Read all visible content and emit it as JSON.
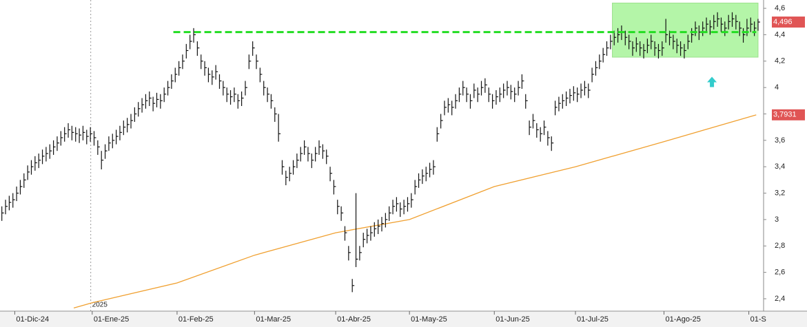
{
  "chart_data": {
    "type": "ohlc",
    "color": "#111111",
    "xlim": [
      0,
      207
    ],
    "ylim": [
      2.306,
      4.663
    ],
    "yticks": [
      {
        "value": 2.4,
        "label": "2,4"
      },
      {
        "value": 2.6,
        "label": "2,6"
      },
      {
        "value": 2.8,
        "label": "2,8"
      },
      3,
      {
        "value": 3.2,
        "label": "3,2"
      },
      {
        "value": 3.4,
        "label": "3,4"
      },
      {
        "value": 3.6,
        "label": "3,6"
      },
      {
        "value": 3.8,
        "label": "3,8"
      },
      4,
      {
        "value": 4.2,
        "label": "4,2"
      },
      {
        "value": 4.4,
        "label": "4,4"
      },
      {
        "value": 4.6,
        "label": "4,6"
      }
    ],
    "xticks": [
      {
        "value": 4,
        "label": "01-Dic-24"
      },
      {
        "value": 25,
        "label": "01-Ene-25"
      },
      {
        "value": 48,
        "label": "01-Feb-25"
      },
      {
        "value": 69,
        "label": "01-Mar-25"
      },
      {
        "value": 91,
        "label": "01-Abr-25"
      },
      {
        "value": 111,
        "label": "01-May-25"
      },
      {
        "value": 134,
        "label": "01-Jun-25"
      },
      {
        "value": 156,
        "label": "01-Jul-25"
      },
      {
        "value": 180,
        "label": "01-Ago-25"
      },
      {
        "value": 203,
        "label": "01-S"
      }
    ],
    "year_marker": {
      "x": 24.6,
      "label": "2025"
    },
    "high": [
      3.1,
      3.15,
      3.18,
      3.2,
      3.25,
      3.3,
      3.35,
      3.41,
      3.45,
      3.48,
      3.5,
      3.53,
      3.55,
      3.57,
      3.6,
      3.63,
      3.67,
      3.7,
      3.73,
      3.71,
      3.7,
      3.69,
      3.71,
      3.68,
      3.7,
      3.67,
      3.6,
      3.52,
      3.57,
      3.63,
      3.65,
      3.68,
      3.71,
      3.75,
      3.77,
      3.8,
      3.85,
      3.89,
      3.92,
      3.95,
      3.97,
      3.93,
      3.96,
      3.95,
      4.0,
      4.05,
      4.1,
      4.15,
      4.2,
      4.25,
      4.33,
      4.4,
      4.45,
      4.35,
      4.25,
      4.2,
      4.15,
      4.13,
      4.17,
      4.1,
      4.05,
      4.0,
      3.98,
      4.0,
      3.95,
      3.97,
      4.05,
      4.25,
      4.35,
      4.25,
      4.15,
      4.05,
      4.0,
      3.95,
      3.85,
      3.8,
      3.45,
      3.37,
      3.4,
      3.45,
      3.5,
      3.55,
      3.6,
      3.55,
      3.5,
      3.55,
      3.6,
      3.57,
      3.53,
      3.4,
      3.3,
      3.15,
      3.1,
      2.95,
      2.8,
      2.55,
      3.2,
      2.8,
      2.9,
      2.93,
      2.95,
      2.98,
      3.0,
      3.02,
      3.05,
      3.1,
      3.15,
      3.17,
      3.13,
      3.15,
      3.17,
      3.2,
      3.3,
      3.35,
      3.38,
      3.4,
      3.43,
      3.45,
      3.7,
      3.8,
      3.9,
      3.92,
      3.9,
      3.95,
      4.0,
      4.05,
      4.0,
      3.95,
      4.03,
      4.0,
      4.05,
      4.07,
      4.0,
      3.95,
      3.98,
      4.0,
      4.03,
      4.05,
      4.02,
      4.0,
      4.05,
      4.1,
      3.95,
      3.75,
      3.8,
      3.73,
      3.7,
      3.75,
      3.67,
      3.63,
      3.9,
      3.93,
      3.95,
      3.97,
      3.99,
      4.01,
      4.0,
      4.03,
      4.05,
      4.03,
      4.15,
      4.2,
      4.25,
      4.3,
      4.35,
      4.4,
      4.43,
      4.45,
      4.47,
      4.43,
      4.4,
      4.35,
      4.38,
      4.35,
      4.33,
      4.37,
      4.4,
      4.35,
      4.33,
      4.35,
      4.52,
      4.43,
      4.4,
      4.37,
      4.35,
      4.33,
      4.4,
      4.45,
      4.5,
      4.47,
      4.5,
      4.53,
      4.51,
      4.55,
      4.57,
      4.53,
      4.5,
      4.55,
      4.57,
      4.55,
      4.5,
      4.45,
      4.52,
      4.53,
      4.5,
      4.52
    ],
    "low": [
      2.99,
      3.04,
      3.07,
      3.09,
      3.14,
      3.19,
      3.24,
      3.3,
      3.34,
      3.37,
      3.39,
      3.42,
      3.44,
      3.46,
      3.49,
      3.52,
      3.56,
      3.59,
      3.62,
      3.6,
      3.59,
      3.58,
      3.6,
      3.57,
      3.59,
      3.56,
      3.49,
      3.38,
      3.46,
      3.52,
      3.54,
      3.57,
      3.6,
      3.64,
      3.66,
      3.69,
      3.74,
      3.78,
      3.81,
      3.84,
      3.86,
      3.82,
      3.85,
      3.84,
      3.89,
      3.94,
      3.99,
      4.04,
      4.09,
      4.14,
      4.22,
      4.29,
      4.34,
      4.24,
      4.14,
      4.09,
      4.04,
      4.02,
      4.06,
      3.99,
      3.94,
      3.89,
      3.87,
      3.89,
      3.84,
      3.86,
      3.94,
      4.14,
      4.24,
      4.14,
      4.04,
      3.94,
      3.89,
      3.84,
      3.74,
      3.59,
      3.34,
      3.26,
      3.29,
      3.34,
      3.39,
      3.44,
      3.49,
      3.44,
      3.39,
      3.44,
      3.49,
      3.46,
      3.42,
      3.29,
      3.19,
      3.04,
      2.99,
      2.84,
      2.69,
      2.45,
      2.64,
      2.69,
      2.79,
      2.82,
      2.84,
      2.87,
      2.89,
      2.91,
      2.94,
      2.99,
      3.04,
      3.06,
      3.02,
      3.04,
      3.06,
      3.09,
      3.19,
      3.24,
      3.27,
      3.29,
      3.32,
      3.34,
      3.59,
      3.69,
      3.79,
      3.81,
      3.79,
      3.84,
      3.89,
      3.94,
      3.89,
      3.84,
      3.92,
      3.89,
      3.94,
      3.96,
      3.89,
      3.84,
      3.87,
      3.89,
      3.92,
      3.94,
      3.91,
      3.89,
      3.94,
      3.99,
      3.84,
      3.64,
      3.69,
      3.62,
      3.59,
      3.64,
      3.56,
      3.52,
      3.79,
      3.82,
      3.84,
      3.86,
      3.88,
      3.9,
      3.89,
      3.92,
      3.94,
      3.92,
      4.04,
      4.09,
      4.14,
      4.19,
      4.24,
      4.29,
      4.32,
      4.34,
      4.36,
      4.32,
      4.29,
      4.24,
      4.27,
      4.24,
      4.22,
      4.26,
      4.29,
      4.24,
      4.22,
      4.24,
      4.34,
      4.32,
      4.29,
      4.26,
      4.24,
      4.22,
      4.29,
      4.34,
      4.39,
      4.36,
      4.39,
      4.42,
      4.4,
      4.44,
      4.46,
      4.42,
      4.39,
      4.44,
      4.46,
      4.44,
      4.39,
      4.34,
      4.39,
      4.42,
      4.39,
      4.43
    ],
    "close": [
      3.05,
      3.1,
      3.13,
      3.15,
      3.2,
      3.25,
      3.3,
      3.36,
      3.4,
      3.43,
      3.45,
      3.48,
      3.5,
      3.52,
      3.55,
      3.58,
      3.62,
      3.65,
      3.68,
      3.66,
      3.65,
      3.64,
      3.66,
      3.63,
      3.65,
      3.62,
      3.55,
      3.45,
      3.52,
      3.58,
      3.6,
      3.63,
      3.66,
      3.7,
      3.72,
      3.75,
      3.8,
      3.84,
      3.87,
      3.9,
      3.92,
      3.88,
      3.91,
      3.9,
      3.95,
      4.0,
      4.05,
      4.1,
      4.15,
      4.2,
      4.28,
      4.35,
      4.4,
      4.3,
      4.2,
      4.15,
      4.1,
      4.08,
      4.12,
      4.05,
      4.0,
      3.95,
      3.93,
      3.95,
      3.9,
      3.92,
      4.0,
      4.2,
      4.3,
      4.2,
      4.1,
      4.0,
      3.95,
      3.9,
      3.8,
      3.65,
      3.4,
      3.32,
      3.35,
      3.4,
      3.45,
      3.5,
      3.55,
      3.5,
      3.45,
      3.5,
      3.55,
      3.52,
      3.48,
      3.35,
      3.25,
      3.1,
      3.05,
      2.9,
      2.75,
      2.5,
      2.7,
      2.75,
      2.85,
      2.88,
      2.9,
      2.93,
      2.95,
      2.97,
      3.0,
      3.05,
      3.1,
      3.12,
      3.08,
      3.1,
      3.12,
      3.15,
      3.25,
      3.3,
      3.33,
      3.35,
      3.38,
      3.4,
      3.65,
      3.75,
      3.85,
      3.87,
      3.85,
      3.9,
      3.95,
      4.0,
      3.95,
      3.9,
      3.98,
      3.95,
      4.0,
      4.02,
      3.95,
      3.9,
      3.93,
      3.95,
      3.98,
      4.0,
      3.97,
      3.95,
      4.0,
      4.05,
      3.9,
      3.7,
      3.75,
      3.68,
      3.65,
      3.7,
      3.62,
      3.58,
      3.85,
      3.88,
      3.9,
      3.92,
      3.94,
      3.96,
      3.95,
      3.98,
      4.0,
      3.98,
      4.1,
      4.15,
      4.2,
      4.25,
      4.3,
      4.35,
      4.38,
      4.4,
      4.42,
      4.38,
      4.35,
      4.3,
      4.33,
      4.3,
      4.28,
      4.32,
      4.35,
      4.3,
      4.28,
      4.3,
      4.4,
      4.38,
      4.35,
      4.32,
      4.3,
      4.28,
      4.35,
      4.4,
      4.45,
      4.42,
      4.45,
      4.48,
      4.46,
      4.5,
      4.52,
      4.48,
      4.45,
      4.5,
      4.52,
      4.5,
      4.45,
      4.4,
      4.45,
      4.48,
      4.45,
      4.496
    ],
    "moving_average": {
      "color": "#f0a030",
      "x": [
        20,
        25,
        48,
        69,
        91,
        111,
        134,
        156,
        180,
        205
      ],
      "values": [
        2.33,
        2.37,
        2.52,
        2.73,
        2.9,
        3.0,
        3.25,
        3.4,
        3.59,
        3.7931
      ]
    },
    "resistance": {
      "value": 4.42,
      "x": [
        47,
        205
      ],
      "color": "#22dd22"
    },
    "highlight_box": {
      "x": [
        166,
        205.5
      ],
      "y": [
        4.23,
        4.64
      ],
      "color": "#b4f5a8"
    },
    "arrow": {
      "x": 193,
      "y": 4.04,
      "color": "#33cccc"
    },
    "last_labels": [
      {
        "value": 4.496,
        "label": "4,496",
        "color": "#e05555"
      },
      {
        "value": 3.7931,
        "label": "3,7931",
        "color": "#e05555"
      }
    ]
  }
}
